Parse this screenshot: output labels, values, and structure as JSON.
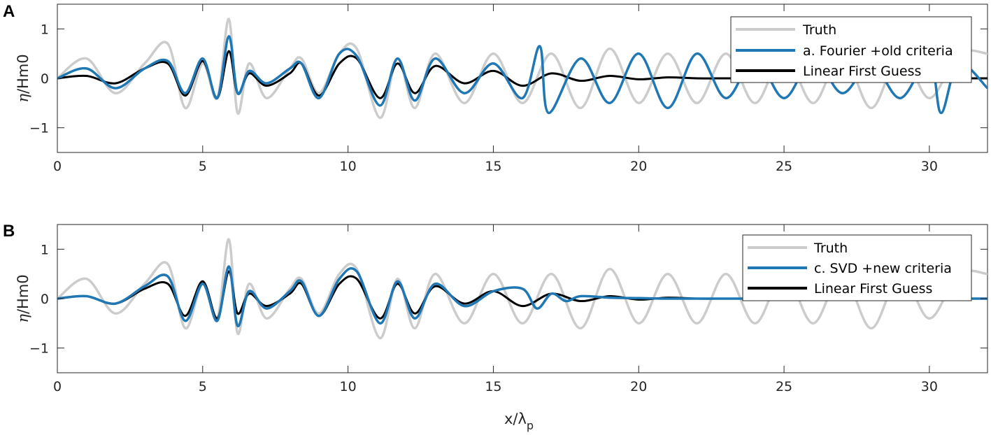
{
  "figure": {
    "panels": [
      {
        "letter": "A",
        "ylabel_symbol": "η",
        "ylabel_rest": "/Hm0",
        "legend": [
          "Truth",
          "a. Fourier +old criteria",
          "Linear First Guess"
        ]
      },
      {
        "letter": "B",
        "ylabel_symbol": "η",
        "ylabel_rest": "/Hm0",
        "legend": [
          "Truth",
          "c. SVD +new criteria",
          "Linear First Guess"
        ],
        "xlabel_main": "x/λ",
        "xlabel_sub": "p"
      }
    ]
  },
  "chart_data": [
    {
      "type": "line",
      "panel": "A",
      "xlabel": "x/λp",
      "ylabel": "η/Hm0",
      "xlim": [
        0,
        32
      ],
      "ylim": [
        -1.5,
        1.5
      ],
      "xticks": [
        0,
        5,
        10,
        15,
        20,
        25,
        30
      ],
      "yticks": [
        -1,
        0,
        1
      ],
      "grid": false,
      "legend_position": "top-right",
      "colors": {
        "Truth": "#cccccc",
        "a. Fourier +old criteria": "#1f77b4",
        "Linear First Guess": "#000000"
      },
      "series": [
        {
          "name": "Truth",
          "x": [
            0,
            1,
            2,
            3,
            3.8,
            4.4,
            5,
            5.5,
            5.9,
            6.2,
            6.6,
            7.2,
            8,
            8.4,
            9,
            9.7,
            10.3,
            11.1,
            11.7,
            12.3,
            13,
            14,
            15,
            16,
            17,
            18,
            19,
            20,
            21,
            22,
            23,
            24,
            25,
            26,
            27,
            28,
            29,
            30,
            31,
            32
          ],
          "y": [
            0,
            0.4,
            -0.3,
            0.3,
            0.7,
            -0.6,
            0.3,
            -0.4,
            1.2,
            -0.7,
            0.3,
            -0.4,
            0.2,
            0.4,
            -0.3,
            0.5,
            0.6,
            -0.8,
            0.4,
            -0.6,
            0.5,
            -0.5,
            0.5,
            -0.5,
            0.5,
            -0.6,
            0.6,
            -0.5,
            0.5,
            -0.5,
            0.5,
            -0.5,
            0.5,
            -0.5,
            0.5,
            -0.6,
            0.5,
            -0.4,
            0.5,
            0.5
          ]
        },
        {
          "name": "a. Fourier +old criteria",
          "x": [
            0,
            1,
            2,
            3,
            3.8,
            4.4,
            5,
            5.5,
            5.9,
            6.2,
            6.6,
            7.2,
            8,
            8.4,
            9,
            9.7,
            10.3,
            11.1,
            11.7,
            12.3,
            13,
            14,
            15,
            16,
            16.6,
            16.9,
            18,
            19,
            20,
            21,
            22,
            23,
            24,
            25,
            26,
            27,
            28,
            29,
            30,
            30.4,
            31,
            32
          ],
          "y": [
            0,
            0.2,
            -0.2,
            0.2,
            0.35,
            -0.3,
            0.4,
            -0.4,
            0.85,
            -0.3,
            0.15,
            -0.1,
            0.2,
            0.3,
            -0.4,
            0.5,
            0.45,
            -0.55,
            0.4,
            -0.45,
            0.4,
            -0.3,
            0.3,
            -0.4,
            0.65,
            -0.7,
            0.4,
            -0.5,
            0.5,
            -0.6,
            0.5,
            -0.4,
            0.4,
            -0.4,
            0.4,
            -0.3,
            0.3,
            -0.4,
            0.4,
            -0.7,
            0.3,
            -0.2
          ]
        },
        {
          "name": "Linear First Guess",
          "x": [
            0,
            1,
            2,
            3,
            3.8,
            4.4,
            5,
            5.5,
            5.9,
            6.2,
            6.6,
            7.2,
            8,
            8.4,
            9,
            9.7,
            10.3,
            11.1,
            11.7,
            12.3,
            13,
            14,
            15,
            16,
            17,
            18,
            19,
            20,
            21,
            22,
            23,
            24,
            25,
            26,
            27,
            28,
            29,
            30,
            31,
            32
          ],
          "y": [
            0,
            0.05,
            -0.1,
            0.2,
            0.3,
            -0.35,
            0.35,
            -0.4,
            0.55,
            -0.3,
            0.1,
            -0.15,
            0.1,
            0.3,
            -0.35,
            0.3,
            0.4,
            -0.4,
            0.3,
            -0.3,
            0.25,
            -0.1,
            0.15,
            -0.15,
            0.1,
            -0.05,
            0.05,
            -0.02,
            0.02,
            0,
            0,
            0,
            0,
            0,
            0,
            0,
            0,
            0,
            0,
            0
          ]
        }
      ]
    },
    {
      "type": "line",
      "panel": "B",
      "xlabel": "x/λp",
      "ylabel": "η/Hm0",
      "xlim": [
        0,
        32
      ],
      "ylim": [
        -1.5,
        1.5
      ],
      "xticks": [
        0,
        5,
        10,
        15,
        20,
        25,
        30
      ],
      "yticks": [
        -1,
        0,
        1
      ],
      "grid": false,
      "legend_position": "top-right",
      "colors": {
        "Truth": "#cccccc",
        "c. SVD +new criteria": "#1f77b4",
        "Linear First Guess": "#000000"
      },
      "series": [
        {
          "name": "Truth",
          "x": [
            0,
            1,
            2,
            3,
            3.8,
            4.4,
            5,
            5.5,
            5.9,
            6.2,
            6.6,
            7.2,
            8,
            8.4,
            9,
            9.7,
            10.3,
            11.1,
            11.7,
            12.3,
            13,
            14,
            15,
            16,
            17,
            18,
            19,
            20,
            21,
            22,
            23,
            24,
            25,
            26,
            27,
            28,
            29,
            30,
            31,
            32
          ],
          "y": [
            0,
            0.4,
            -0.3,
            0.3,
            0.7,
            -0.6,
            0.3,
            -0.4,
            1.2,
            -0.7,
            0.3,
            -0.4,
            0.2,
            0.4,
            -0.3,
            0.5,
            0.6,
            -0.8,
            0.4,
            -0.6,
            0.5,
            -0.5,
            0.5,
            -0.5,
            0.5,
            -0.6,
            0.6,
            -0.5,
            0.5,
            -0.5,
            0.5,
            -0.5,
            0.5,
            -0.5,
            0.5,
            -0.6,
            0.5,
            -0.4,
            0.5,
            0.5
          ]
        },
        {
          "name": "c. SVD +new criteria",
          "x": [
            0,
            1,
            2,
            3,
            3.8,
            4.4,
            5,
            5.5,
            5.9,
            6.2,
            6.6,
            7.2,
            8,
            8.4,
            9,
            9.7,
            10.3,
            11.1,
            11.7,
            12.3,
            13,
            14,
            15,
            16,
            16.5,
            17,
            17.5,
            18,
            19,
            20,
            21,
            22,
            23,
            24,
            25,
            26,
            27,
            28,
            29,
            30,
            31,
            32
          ],
          "y": [
            0,
            0.05,
            -0.1,
            0.25,
            0.45,
            -0.45,
            0.3,
            -0.45,
            0.65,
            -0.55,
            0.15,
            -0.2,
            0.15,
            0.35,
            -0.35,
            0.4,
            0.55,
            -0.5,
            0.35,
            -0.4,
            0.3,
            -0.15,
            0.15,
            0.2,
            -0.2,
            0.1,
            -0.05,
            0.05,
            0.02,
            0.01,
            0,
            0,
            0,
            0,
            0,
            0,
            0,
            0,
            0,
            0,
            0,
            0
          ]
        },
        {
          "name": "Linear First Guess",
          "x": [
            0,
            1,
            2,
            3,
            3.8,
            4.4,
            5,
            5.5,
            5.9,
            6.2,
            6.6,
            7.2,
            8,
            8.4,
            9,
            9.7,
            10.3,
            11.1,
            11.7,
            12.3,
            13,
            14,
            15,
            16,
            17,
            18,
            19,
            20,
            21,
            22,
            23,
            24,
            25,
            26,
            27,
            28,
            29,
            30,
            31,
            32
          ],
          "y": [
            0,
            0.05,
            -0.1,
            0.2,
            0.3,
            -0.35,
            0.35,
            -0.4,
            0.55,
            -0.3,
            0.1,
            -0.15,
            0.1,
            0.3,
            -0.35,
            0.3,
            0.4,
            -0.4,
            0.3,
            -0.3,
            0.25,
            -0.1,
            0.15,
            -0.15,
            0.1,
            -0.05,
            0.05,
            -0.02,
            0.02,
            0,
            0,
            0,
            0,
            0,
            0,
            0,
            0,
            0,
            0,
            0
          ]
        }
      ]
    }
  ]
}
